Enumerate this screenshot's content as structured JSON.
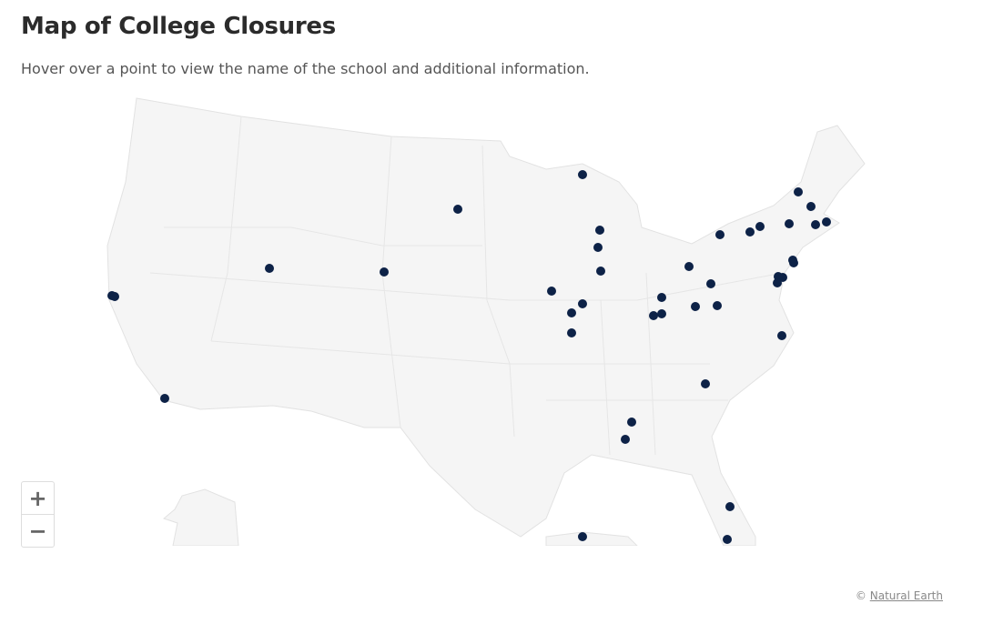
{
  "header": {
    "title": "Map of College Closures",
    "subtitle": "Hover over a point to view the name of the school and additional information."
  },
  "map": {
    "land_color": "#f5f5f5",
    "border_color": "#e2e2e2",
    "marker_color": "#0d2247",
    "zoom_in_label": "+",
    "zoom_out_label": "−"
  },
  "attribution": {
    "prefix": "©",
    "link": "Natural Earth"
  }
}
